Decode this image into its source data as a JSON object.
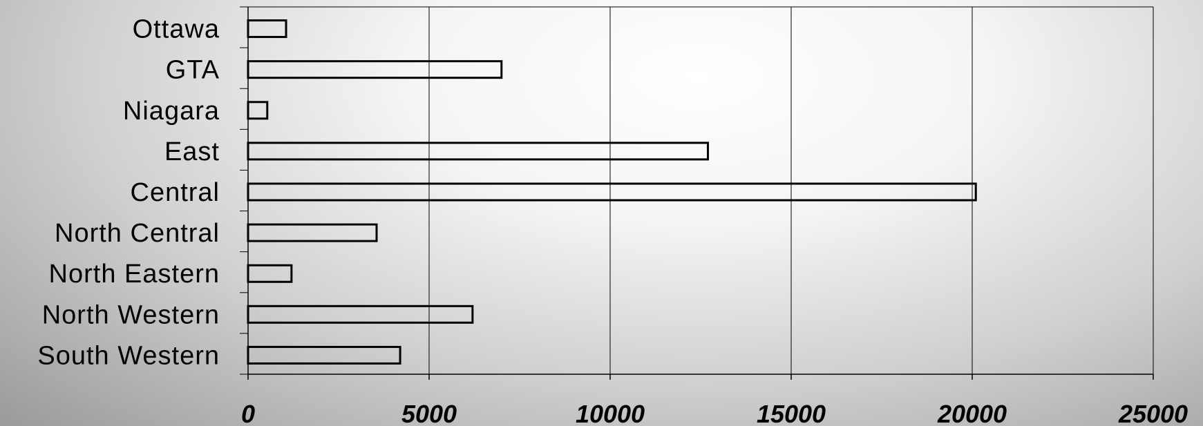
{
  "chart_data": {
    "type": "bar",
    "orientation": "horizontal",
    "title": "",
    "xlabel": "",
    "ylabel": "",
    "categories": [
      "Ottawa",
      "GTA",
      "Niagara",
      "East",
      "Central",
      "North Central",
      "North Eastern",
      "North Western",
      "South Western"
    ],
    "values": [
      1050,
      7000,
      530,
      12700,
      20100,
      3550,
      1200,
      6200,
      4200
    ],
    "xlim": [
      0,
      25000
    ],
    "xticks": [
      0,
      5000,
      10000,
      15000,
      20000,
      25000
    ],
    "xtick_labels": [
      "0",
      "5000",
      "10000",
      "15000",
      "20000",
      "25000"
    ],
    "grid": "vertical",
    "legend": "none",
    "bar_fill": "transparent",
    "bar_stroke": "#000000"
  }
}
